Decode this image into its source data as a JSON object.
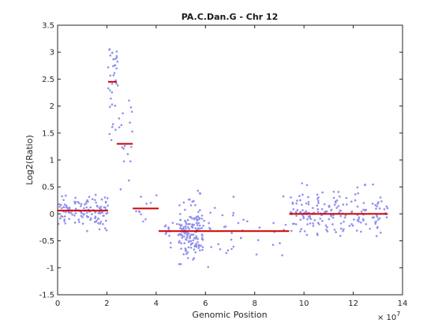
{
  "chart_data": {
    "type": "scatter",
    "title": "PA.C.Dan.G - Chr 12",
    "xlabel": "Genomic Position",
    "ylabel": "Log2(Ratio)",
    "x_exponent_label": "× 10",
    "x_exponent_power": "7",
    "xlim": [
      0,
      14
    ],
    "ylim": [
      -1.5,
      3.5
    ],
    "x_scale_factor": 10000000,
    "xticks": [
      "0",
      "2",
      "4",
      "6",
      "8",
      "10",
      "12",
      "14"
    ],
    "yticks": [
      "-1.5",
      "-1",
      "-0.5",
      "0",
      "0.5",
      "1",
      "1.5",
      "2",
      "2.5",
      "3",
      "3.5"
    ],
    "point_color": "#8f8ff0",
    "segment_color": "#cc0000",
    "segments": [
      {
        "x0": 0.0,
        "x1": 2.05,
        "y": 0.06
      },
      {
        "x0": 2.05,
        "x1": 2.4,
        "y": 2.45
      },
      {
        "x0": 2.4,
        "x1": 3.05,
        "y": 1.3
      },
      {
        "x0": 3.05,
        "x1": 4.1,
        "y": 0.1
      },
      {
        "x0": 4.1,
        "x1": 9.4,
        "y": -0.32
      },
      {
        "x0": 9.4,
        "x1": 13.4,
        "y": 0.0
      }
    ],
    "clusters": [
      {
        "x0": 0.0,
        "x1": 2.05,
        "mean": 0.05,
        "sd": 0.13,
        "n": 130
      },
      {
        "x0": 2.05,
        "x1": 2.45,
        "mean": 2.5,
        "sd": 0.55,
        "n": 35
      },
      {
        "x0": 2.45,
        "x1": 3.05,
        "mean": 1.25,
        "sd": 0.35,
        "n": 18
      },
      {
        "x0": 3.05,
        "x1": 4.1,
        "mean": 0.1,
        "sd": 0.22,
        "n": 10
      },
      {
        "x0": 4.1,
        "x1": 4.9,
        "mean": -0.3,
        "sd": 0.2,
        "n": 12
      },
      {
        "x0": 4.9,
        "x1": 5.9,
        "mean": -0.3,
        "sd": 0.25,
        "n": 150
      },
      {
        "x0": 5.9,
        "x1": 9.4,
        "mean": -0.4,
        "sd": 0.28,
        "n": 40
      },
      {
        "x0": 9.4,
        "x1": 13.4,
        "mean": 0.02,
        "sd": 0.2,
        "n": 190
      }
    ]
  }
}
